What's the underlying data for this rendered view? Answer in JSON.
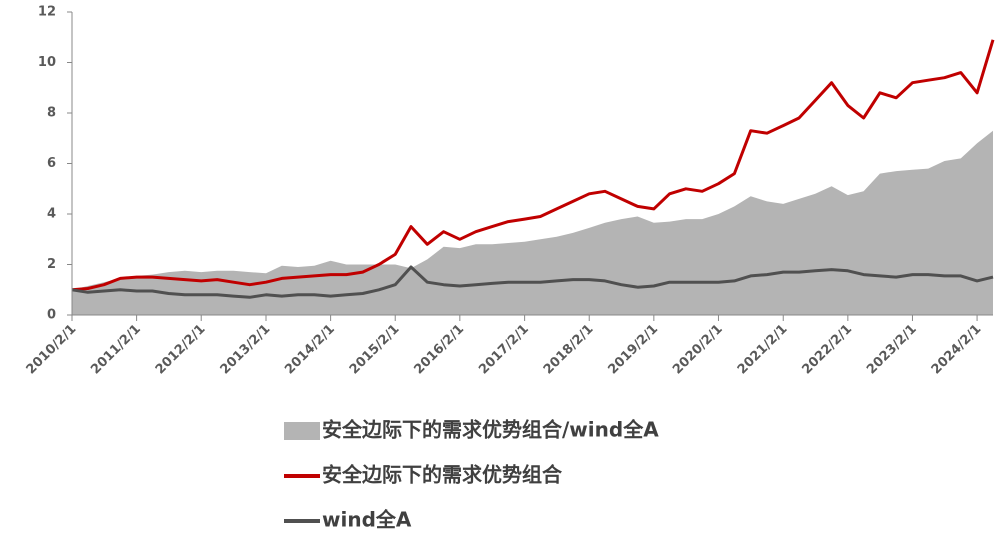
{
  "chart_data": {
    "type": "line",
    "x": [
      "2010/2/1",
      "2010/5/1",
      "2010/8/1",
      "2010/11/1",
      "2011/2/1",
      "2011/5/1",
      "2011/8/1",
      "2011/11/1",
      "2012/2/1",
      "2012/5/1",
      "2012/8/1",
      "2012/11/1",
      "2013/2/1",
      "2013/5/1",
      "2013/8/1",
      "2013/11/1",
      "2014/2/1",
      "2014/5/1",
      "2014/8/1",
      "2014/11/1",
      "2015/2/1",
      "2015/5/1",
      "2015/8/1",
      "2015/11/1",
      "2016/2/1",
      "2016/5/1",
      "2016/8/1",
      "2016/11/1",
      "2017/2/1",
      "2017/5/1",
      "2017/8/1",
      "2017/11/1",
      "2018/2/1",
      "2018/5/1",
      "2018/8/1",
      "2018/11/1",
      "2019/2/1",
      "2019/5/1",
      "2019/8/1",
      "2019/11/1",
      "2020/2/1",
      "2020/5/1",
      "2020/8/1",
      "2020/11/1",
      "2021/2/1",
      "2021/5/1",
      "2021/8/1",
      "2021/11/1",
      "2022/2/1",
      "2022/5/1",
      "2022/8/1",
      "2022/11/1",
      "2023/2/1",
      "2023/5/1",
      "2023/8/1",
      "2023/11/1",
      "2024/2/1",
      "2024/5/1"
    ],
    "series": [
      {
        "name": "安全边际下的需求优势组合/wind全A",
        "color": "#b4b4b4",
        "style": "area",
        "values": [
          1.0,
          1.15,
          1.3,
          1.45,
          1.55,
          1.6,
          1.7,
          1.75,
          1.7,
          1.75,
          1.75,
          1.7,
          1.65,
          1.95,
          1.9,
          1.95,
          2.15,
          2.0,
          2.0,
          2.0,
          2.0,
          1.85,
          2.2,
          2.7,
          2.65,
          2.8,
          2.8,
          2.85,
          2.9,
          3.0,
          3.1,
          3.25,
          3.45,
          3.65,
          3.8,
          3.9,
          3.65,
          3.7,
          3.8,
          3.8,
          4.0,
          4.3,
          4.7,
          4.5,
          4.4,
          4.6,
          4.8,
          5.1,
          4.75,
          4.9,
          5.6,
          5.7,
          5.75,
          5.8,
          6.1,
          6.2,
          6.8,
          7.3
        ]
      },
      {
        "name": "安全边际下的需求优势组合",
        "color": "#c00000",
        "style": "line",
        "values": [
          1.0,
          1.05,
          1.2,
          1.45,
          1.5,
          1.5,
          1.45,
          1.4,
          1.35,
          1.4,
          1.3,
          1.2,
          1.3,
          1.45,
          1.5,
          1.55,
          1.6,
          1.6,
          1.7,
          2.0,
          2.4,
          3.5,
          2.8,
          3.3,
          3.0,
          3.3,
          3.5,
          3.7,
          3.8,
          3.9,
          4.2,
          4.5,
          4.8,
          4.9,
          4.6,
          4.3,
          4.2,
          4.8,
          5.0,
          4.9,
          5.2,
          5.6,
          7.3,
          7.2,
          7.5,
          7.8,
          8.5,
          9.2,
          8.3,
          7.8,
          8.8,
          8.6,
          9.2,
          9.3,
          9.4,
          9.6,
          8.8,
          10.9
        ]
      },
      {
        "name": "wind全A",
        "color": "#505050",
        "style": "line",
        "values": [
          1.0,
          0.9,
          0.95,
          1.0,
          0.95,
          0.95,
          0.85,
          0.8,
          0.8,
          0.8,
          0.75,
          0.7,
          0.8,
          0.75,
          0.8,
          0.8,
          0.75,
          0.8,
          0.85,
          1.0,
          1.2,
          1.9,
          1.3,
          1.2,
          1.15,
          1.2,
          1.25,
          1.3,
          1.3,
          1.3,
          1.35,
          1.4,
          1.4,
          1.35,
          1.2,
          1.1,
          1.15,
          1.3,
          1.3,
          1.3,
          1.3,
          1.35,
          1.55,
          1.6,
          1.7,
          1.7,
          1.75,
          1.8,
          1.75,
          1.6,
          1.55,
          1.5,
          1.6,
          1.6,
          1.55,
          1.55,
          1.35,
          1.5
        ]
      }
    ],
    "xlim": [
      "2010/2/1",
      "2024/5/1"
    ],
    "xticks": [
      "2010/2/1",
      "2011/2/1",
      "2012/2/1",
      "2013/2/1",
      "2014/2/1",
      "2015/2/1",
      "2016/2/1",
      "2017/2/1",
      "2018/2/1",
      "2019/2/1",
      "2020/2/1",
      "2021/2/1",
      "2022/2/1",
      "2023/2/1",
      "2024/2/1"
    ],
    "ylim": [
      0,
      12
    ],
    "yticks": [
      0,
      2,
      4,
      6,
      8,
      10,
      12
    ],
    "grid": false
  }
}
